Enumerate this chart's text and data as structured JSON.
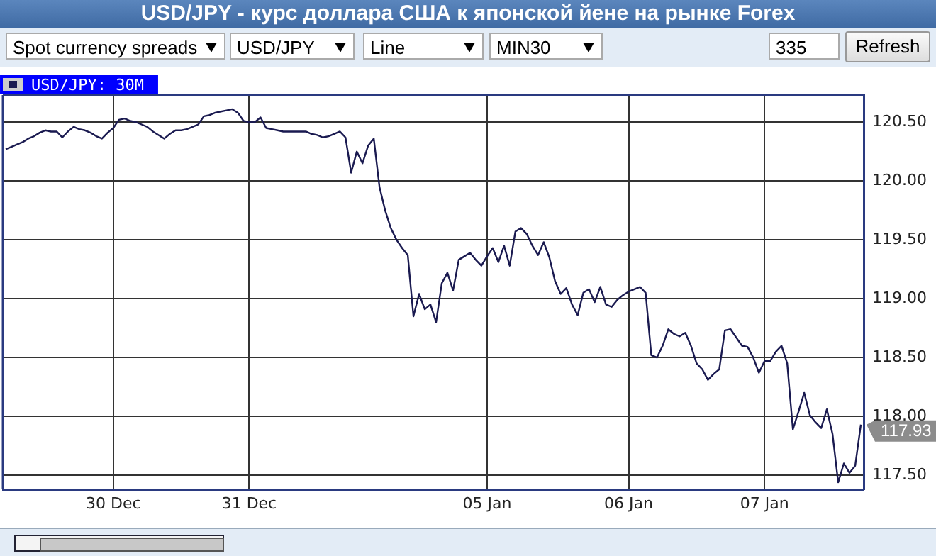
{
  "chart_data": {
    "type": "line",
    "title": "USD/JPY - курс доллара США к японской йене на рынке Forex",
    "categories": [
      null,
      null,
      null,
      null,
      null,
      null,
      null,
      null,
      null,
      null,
      null,
      null,
      null,
      null,
      null,
      null,
      null,
      null,
      null,
      "30 Dec",
      null,
      null,
      null,
      null,
      null,
      null,
      null,
      null,
      null,
      null,
      null,
      null,
      null,
      null,
      null,
      null,
      null,
      null,
      null,
      null,
      null,
      null,
      null,
      "31 Dec",
      null,
      null,
      null,
      null,
      null,
      null,
      null,
      null,
      null,
      null,
      null,
      null,
      null,
      null,
      null,
      null,
      null,
      null,
      null,
      null,
      null,
      null,
      null,
      null,
      null,
      null,
      null,
      null,
      null,
      null,
      null,
      null,
      null,
      null,
      null,
      null,
      null,
      null,
      null,
      null,
      null,
      "05 Jan",
      null,
      null,
      null,
      null,
      null,
      null,
      null,
      null,
      null,
      null,
      null,
      null,
      null,
      null,
      null,
      null,
      null,
      null,
      null,
      null,
      null,
      null,
      null,
      null,
      "06 Jan",
      null,
      null,
      null,
      null,
      null,
      null,
      null,
      null,
      null,
      null,
      null,
      null,
      null,
      null,
      null,
      null,
      null,
      null,
      null,
      null,
      null,
      null,
      null,
      "07 Jan",
      null,
      null,
      null,
      null,
      null,
      null,
      null,
      null,
      null,
      null,
      null,
      null,
      null,
      null,
      null,
      null,
      null
    ],
    "series": [
      {
        "name": "USD/JPY: 30M",
        "color": "#1a1a50",
        "values": [
          120.27,
          120.29,
          120.31,
          120.33,
          120.36,
          120.38,
          120.41,
          120.43,
          120.42,
          120.42,
          120.37,
          120.42,
          120.46,
          120.44,
          120.43,
          120.41,
          120.38,
          120.36,
          120.41,
          120.45,
          120.52,
          120.53,
          120.51,
          120.5,
          120.48,
          120.46,
          120.42,
          120.39,
          120.36,
          120.4,
          120.43,
          120.43,
          120.44,
          120.46,
          120.48,
          120.55,
          120.56,
          120.58,
          120.59,
          120.6,
          120.61,
          120.58,
          120.51,
          120.5,
          120.5,
          120.54,
          120.45,
          120.44,
          120.43,
          120.42,
          120.42,
          120.42,
          120.42,
          120.42,
          120.4,
          120.39,
          120.37,
          120.38,
          120.4,
          120.42,
          120.37,
          120.07,
          120.25,
          120.15,
          120.3,
          120.36,
          119.95,
          119.75,
          119.6,
          119.5,
          119.43,
          119.37,
          118.85,
          119.04,
          118.91,
          118.95,
          118.8,
          119.13,
          119.22,
          119.07,
          119.33,
          119.36,
          119.39,
          119.33,
          119.28,
          119.36,
          119.43,
          119.31,
          119.45,
          119.28,
          119.57,
          119.6,
          119.55,
          119.45,
          119.37,
          119.48,
          119.35,
          119.15,
          119.04,
          119.09,
          118.95,
          118.86,
          119.05,
          119.08,
          118.97,
          119.1,
          118.95,
          118.93,
          118.99,
          119.03,
          119.06,
          119.08,
          119.1,
          119.05,
          118.52,
          118.5,
          118.6,
          118.74,
          118.7,
          118.68,
          118.71,
          118.6,
          118.45,
          118.4,
          118.31,
          118.36,
          118.4,
          118.73,
          118.74,
          118.67,
          118.6,
          118.59,
          118.5,
          118.37,
          118.47,
          118.47,
          118.55,
          118.6,
          118.45,
          117.89,
          118.04,
          118.2,
          118.01,
          117.95,
          117.9,
          118.06,
          117.85,
          117.44,
          117.6,
          117.52,
          117.58,
          117.93
        ]
      }
    ],
    "ylim": [
      117.38,
      120.73
    ],
    "yticks": [
      {
        "value": 117.5,
        "label": "117.50"
      },
      {
        "value": 118,
        "label": "118.00"
      },
      {
        "value": 118.5,
        "label": "118.50"
      },
      {
        "value": 119,
        "label": "119.00"
      },
      {
        "value": 119.5,
        "label": "119.50"
      },
      {
        "value": 120,
        "label": "120.00"
      },
      {
        "value": 120.5,
        "label": "120.50"
      }
    ],
    "grid": true,
    "legend": "top left",
    "marker": "none",
    "line_style": "solid",
    "annotations": [
      "Spot currency spreads",
      "USD/JPY",
      "Line",
      "MIN30",
      "335",
      "Refresh",
      "117.93"
    ]
  }
}
